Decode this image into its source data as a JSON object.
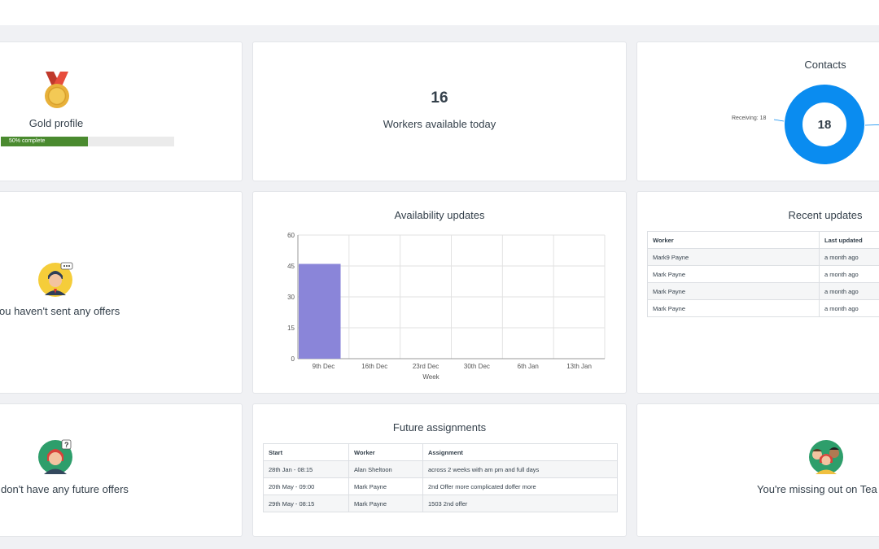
{
  "profile": {
    "title": "Gold profile",
    "progress_label": "50% complete",
    "progress_percent": 0.5,
    "icon": "medal-icon"
  },
  "workers_today": {
    "count": "16",
    "label": "Workers available today"
  },
  "contacts": {
    "title": "Contacts",
    "total": "18",
    "receiving_label": "Receiving: 18",
    "ring_color": "#0a8cf0"
  },
  "offers": {
    "message": "ou haven't sent any offers",
    "icon": "support-agent-icon"
  },
  "availability": {
    "title": "Availability updates",
    "bar_color": "#8a85d9"
  },
  "recent_updates": {
    "title": "Recent updates",
    "columns": [
      "Worker",
      "Last updated"
    ],
    "rows": [
      [
        "Mark9 Payne",
        "a month ago"
      ],
      [
        "Mark Payne",
        "a month ago"
      ],
      [
        "Mark Payne",
        "a month ago"
      ],
      [
        "Mark Payne",
        "a month ago"
      ]
    ]
  },
  "future_offers": {
    "message": "don't have any future offers",
    "icon": "confused-person-icon"
  },
  "future_assignments": {
    "title": "Future assignments",
    "columns": [
      "Start",
      "Worker",
      "Assignment"
    ],
    "rows": [
      [
        "28th Jan - 08:15",
        "Alan Sheltoon",
        "across 2 weeks with am pm and full days"
      ],
      [
        "20th May - 09:00",
        "Mark Payne",
        "2nd Offer more complicated doffer more"
      ],
      [
        "29th May - 08:15",
        "Mark Payne",
        "1503 2nd offer"
      ]
    ]
  },
  "teams": {
    "message": "You're missing out on Tea",
    "icon": "team-group-icon"
  },
  "chart_data": {
    "type": "bar",
    "title": "Availability updates",
    "xlabel": "Week",
    "ylabel": "",
    "categories": [
      "9th Dec",
      "16th Dec",
      "23rd Dec",
      "30th Dec",
      "6th Jan",
      "13th Jan"
    ],
    "values": [
      46,
      0,
      0,
      0,
      0,
      0
    ],
    "ylim": [
      0,
      60
    ],
    "yticks": [
      0,
      15,
      30,
      45,
      60
    ],
    "grid": true
  }
}
